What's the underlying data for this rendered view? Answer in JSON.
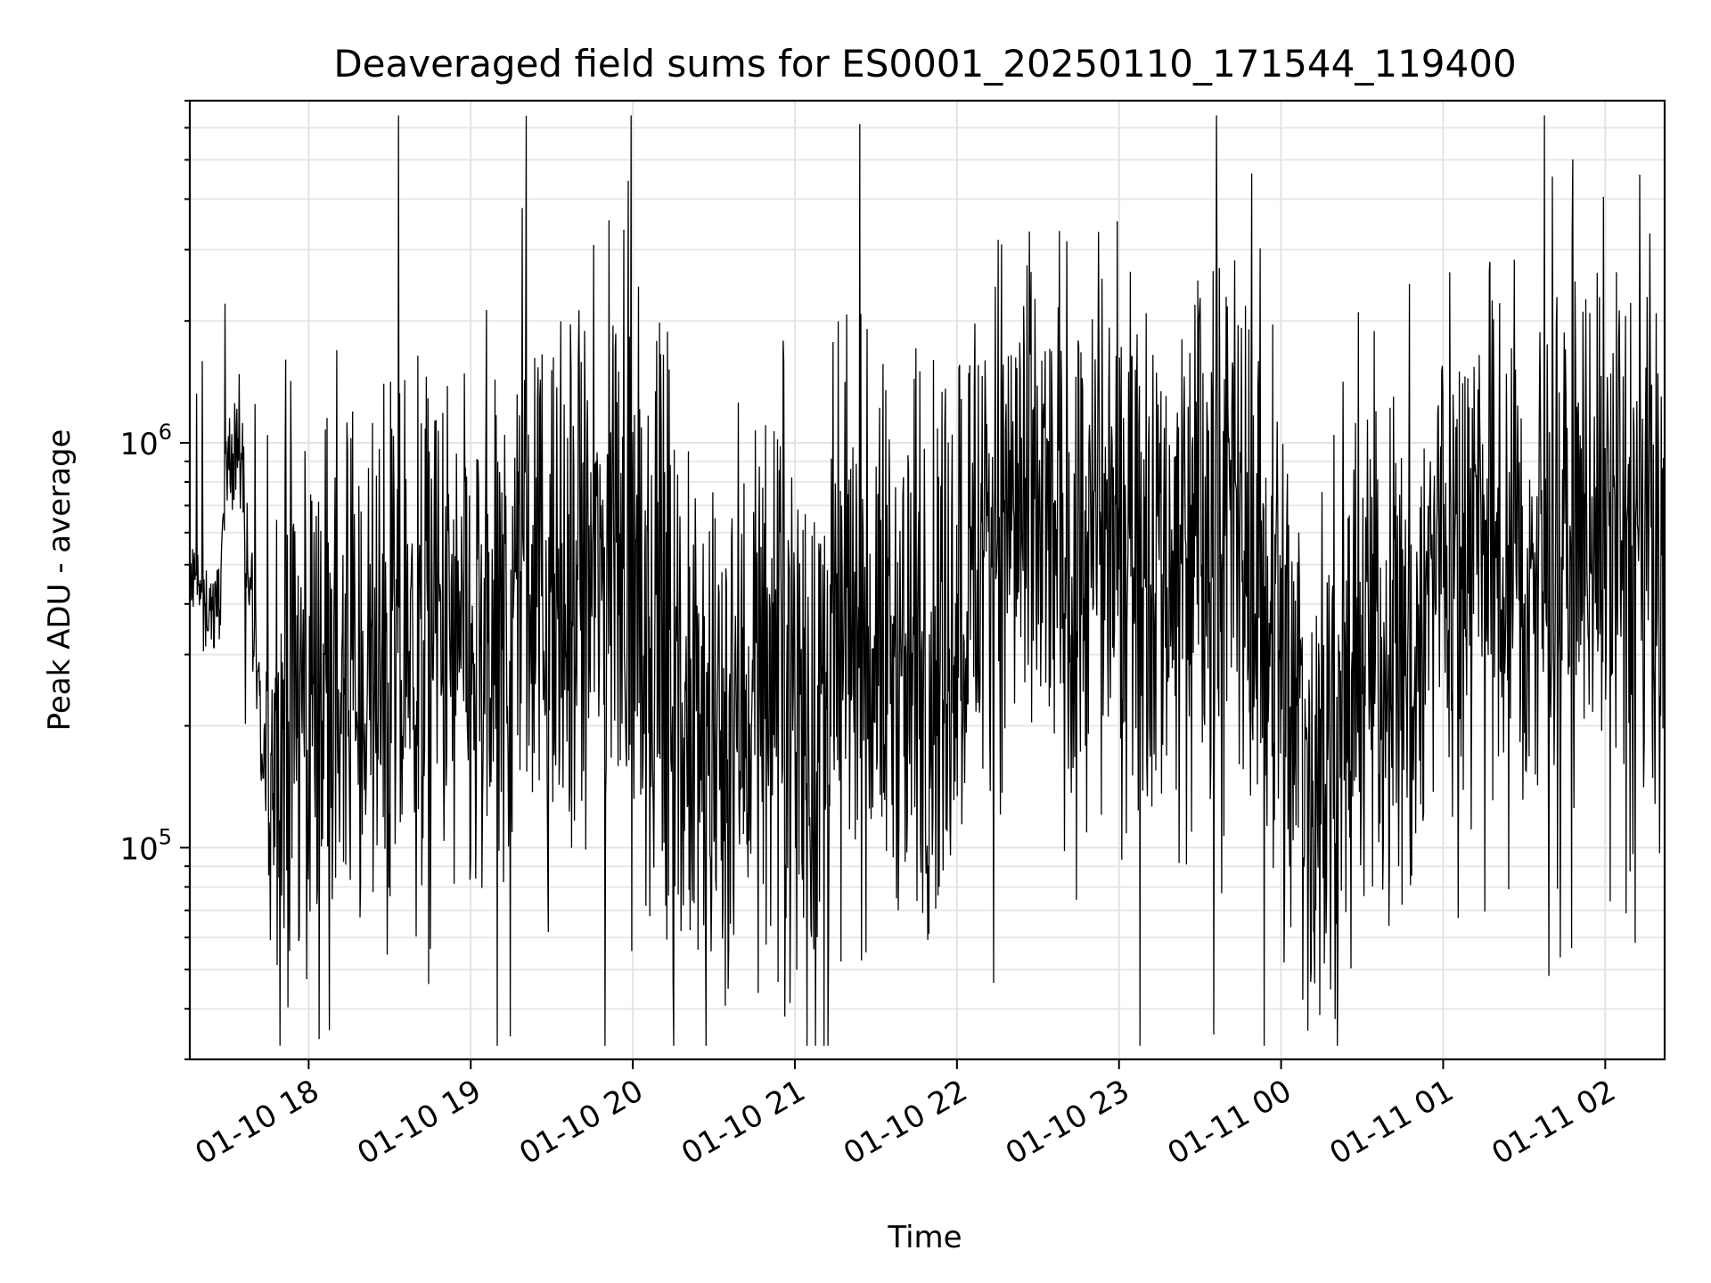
{
  "chart_data": {
    "type": "line",
    "title": "Deaveraged field sums for ES0001_20250110_171544_119400",
    "xlabel": "Time",
    "ylabel": "Peak ADU - average",
    "yscale": "log",
    "ylim": [
      30000,
      7000000
    ],
    "xlim": [
      "2025-01-10 17:16",
      "2025-01-11 02:22"
    ],
    "x_ticks": [
      {
        "label": "01-10 18",
        "time": "2025-01-10 18:00"
      },
      {
        "label": "01-10 19",
        "time": "2025-01-10 19:00"
      },
      {
        "label": "01-10 20",
        "time": "2025-01-10 20:00"
      },
      {
        "label": "01-10 21",
        "time": "2025-01-10 21:00"
      },
      {
        "label": "01-10 22",
        "time": "2025-01-10 22:00"
      },
      {
        "label": "01-10 23",
        "time": "2025-01-10 23:00"
      },
      {
        "label": "01-11 00",
        "time": "2025-01-11 00:00"
      },
      {
        "label": "01-11 01",
        "time": "2025-01-11 01:00"
      },
      {
        "label": "01-11 02",
        "time": "2025-01-11 02:00"
      }
    ],
    "y_ticks": [
      {
        "base": "10",
        "exp": "5",
        "value": 100000
      },
      {
        "base": "10",
        "exp": "6",
        "value": 1000000
      }
    ],
    "grid": true,
    "line_color": "#000000",
    "series": [
      {
        "x": [
          "2025-01-10 17:16",
          "2025-01-10 17:20",
          "2025-01-10 17:26",
          "2025-01-10 17:31",
          "2025-01-10 17:35",
          "2025-01-10 17:40",
          "2025-01-10 17:43",
          "2025-01-10 17:46",
          "2025-01-10 17:50",
          "2025-01-10 17:54",
          "2025-01-10 18:00",
          "2025-01-10 18:10",
          "2025-01-10 18:20",
          "2025-01-10 18:30",
          "2025-01-10 18:34",
          "2025-01-10 18:40",
          "2025-01-10 18:50",
          "2025-01-10 19:00",
          "2025-01-10 19:10",
          "2025-01-10 19:20",
          "2025-01-10 19:30",
          "2025-01-10 19:40",
          "2025-01-10 19:50",
          "2025-01-10 19:58",
          "2025-01-10 20:00",
          "2025-01-10 20:10",
          "2025-01-10 20:20",
          "2025-01-10 20:30",
          "2025-01-10 20:40",
          "2025-01-10 20:50",
          "2025-01-10 21:00",
          "2025-01-10 21:05",
          "2025-01-10 21:10",
          "2025-01-10 21:15",
          "2025-01-10 21:20",
          "2025-01-10 21:30",
          "2025-01-10 21:40",
          "2025-01-10 21:50",
          "2025-01-10 21:55",
          "2025-01-10 22:00",
          "2025-01-10 22:10",
          "2025-01-10 22:20",
          "2025-01-10 22:30",
          "2025-01-10 22:40",
          "2025-01-10 22:50",
          "2025-01-10 23:00",
          "2025-01-10 23:10",
          "2025-01-10 23:20",
          "2025-01-10 23:30",
          "2025-01-10 23:40",
          "2025-01-10 23:50",
          "2025-01-11 00:00",
          "2025-01-11 00:05",
          "2025-01-11 00:10",
          "2025-01-11 00:20",
          "2025-01-11 00:30",
          "2025-01-11 00:40",
          "2025-01-11 00:50",
          "2025-01-11 01:00",
          "2025-01-11 01:10",
          "2025-01-11 01:15",
          "2025-01-11 01:20",
          "2025-01-11 01:30",
          "2025-01-11 01:40",
          "2025-01-11 01:50",
          "2025-01-11 02:00",
          "2025-01-11 02:10",
          "2025-01-11 02:22"
        ],
        "y": [
          450000,
          420000,
          380000,
          1000000,
          950000,
          300000,
          150000,
          200000,
          180000,
          220000,
          250000,
          260000,
          240000,
          230000,
          280000,
          300000,
          320000,
          260000,
          250000,
          550000,
          330000,
          380000,
          500000,
          750000,
          350000,
          250000,
          180000,
          160000,
          230000,
          300000,
          320000,
          180000,
          150000,
          300000,
          320000,
          330000,
          280000,
          260000,
          300000,
          450000,
          550000,
          700000,
          600000,
          550000,
          500000,
          700000,
          550000,
          520000,
          600000,
          580000,
          520000,
          330000,
          200000,
          150000,
          180000,
          330000,
          300000,
          280000,
          650000,
          550000,
          600000,
          550000,
          420000,
          480000,
          650000,
          700000,
          550000,
          500000
        ]
      }
    ]
  }
}
